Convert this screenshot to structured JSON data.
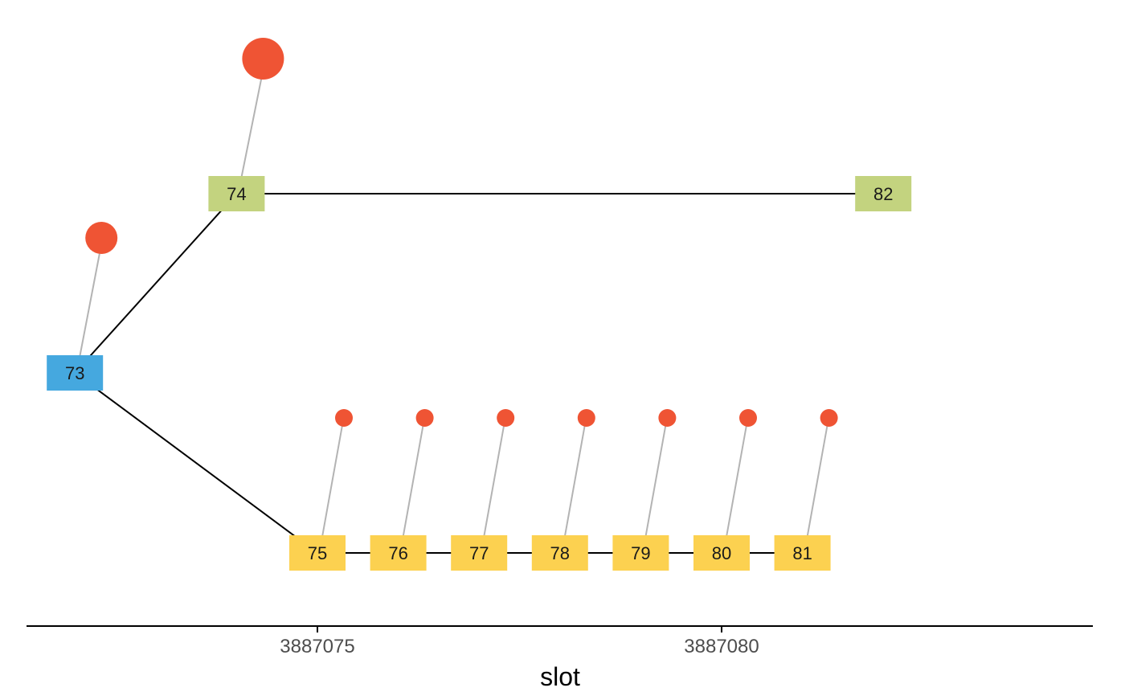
{
  "chart_data": {
    "type": "network",
    "xlabel": "slot",
    "x_ticks": [
      3887075,
      3887080
    ],
    "x_tick_labels": [
      "3887075",
      "3887080"
    ],
    "colors": {
      "root": "#45A8DF",
      "fork": "#C3D37F",
      "main": "#FCD150",
      "vote": "#EF5434",
      "tree_edge": "#000000",
      "vote_edge": "#B3B3B3",
      "axis": "#000000"
    },
    "nodes": [
      {
        "id": "73",
        "label": "73",
        "slot": 3887072,
        "row": "mid",
        "group": "root"
      },
      {
        "id": "74",
        "label": "74",
        "slot": 3887074,
        "row": "top",
        "group": "fork"
      },
      {
        "id": "82",
        "label": "82",
        "slot": 3887082,
        "row": "top",
        "group": "fork"
      },
      {
        "id": "75",
        "label": "75",
        "slot": 3887075,
        "row": "bottom",
        "group": "main"
      },
      {
        "id": "76",
        "label": "76",
        "slot": 3887076,
        "row": "bottom",
        "group": "main"
      },
      {
        "id": "77",
        "label": "77",
        "slot": 3887077,
        "row": "bottom",
        "group": "main"
      },
      {
        "id": "78",
        "label": "78",
        "slot": 3887078,
        "row": "bottom",
        "group": "main"
      },
      {
        "id": "79",
        "label": "79",
        "slot": 3887079,
        "row": "bottom",
        "group": "main"
      },
      {
        "id": "80",
        "label": "80",
        "slot": 3887080,
        "row": "bottom",
        "group": "main"
      },
      {
        "id": "81",
        "label": "81",
        "slot": 3887081,
        "row": "bottom",
        "group": "main"
      }
    ],
    "edges": [
      {
        "from": "73",
        "to": "74"
      },
      {
        "from": "73",
        "to": "75"
      },
      {
        "from": "74",
        "to": "82"
      },
      {
        "from": "75",
        "to": "76"
      },
      {
        "from": "76",
        "to": "77"
      },
      {
        "from": "77",
        "to": "78"
      },
      {
        "from": "78",
        "to": "79"
      },
      {
        "from": "79",
        "to": "80"
      },
      {
        "from": "80",
        "to": "81"
      }
    ],
    "votes": [
      {
        "node": "74",
        "weight": 3
      },
      {
        "node": "73",
        "weight": 2
      },
      {
        "node": "75",
        "weight": 1
      },
      {
        "node": "76",
        "weight": 1
      },
      {
        "node": "77",
        "weight": 1
      },
      {
        "node": "78",
        "weight": 1
      },
      {
        "node": "79",
        "weight": 1
      },
      {
        "node": "80",
        "weight": 1
      },
      {
        "node": "81",
        "weight": 1
      }
    ]
  }
}
